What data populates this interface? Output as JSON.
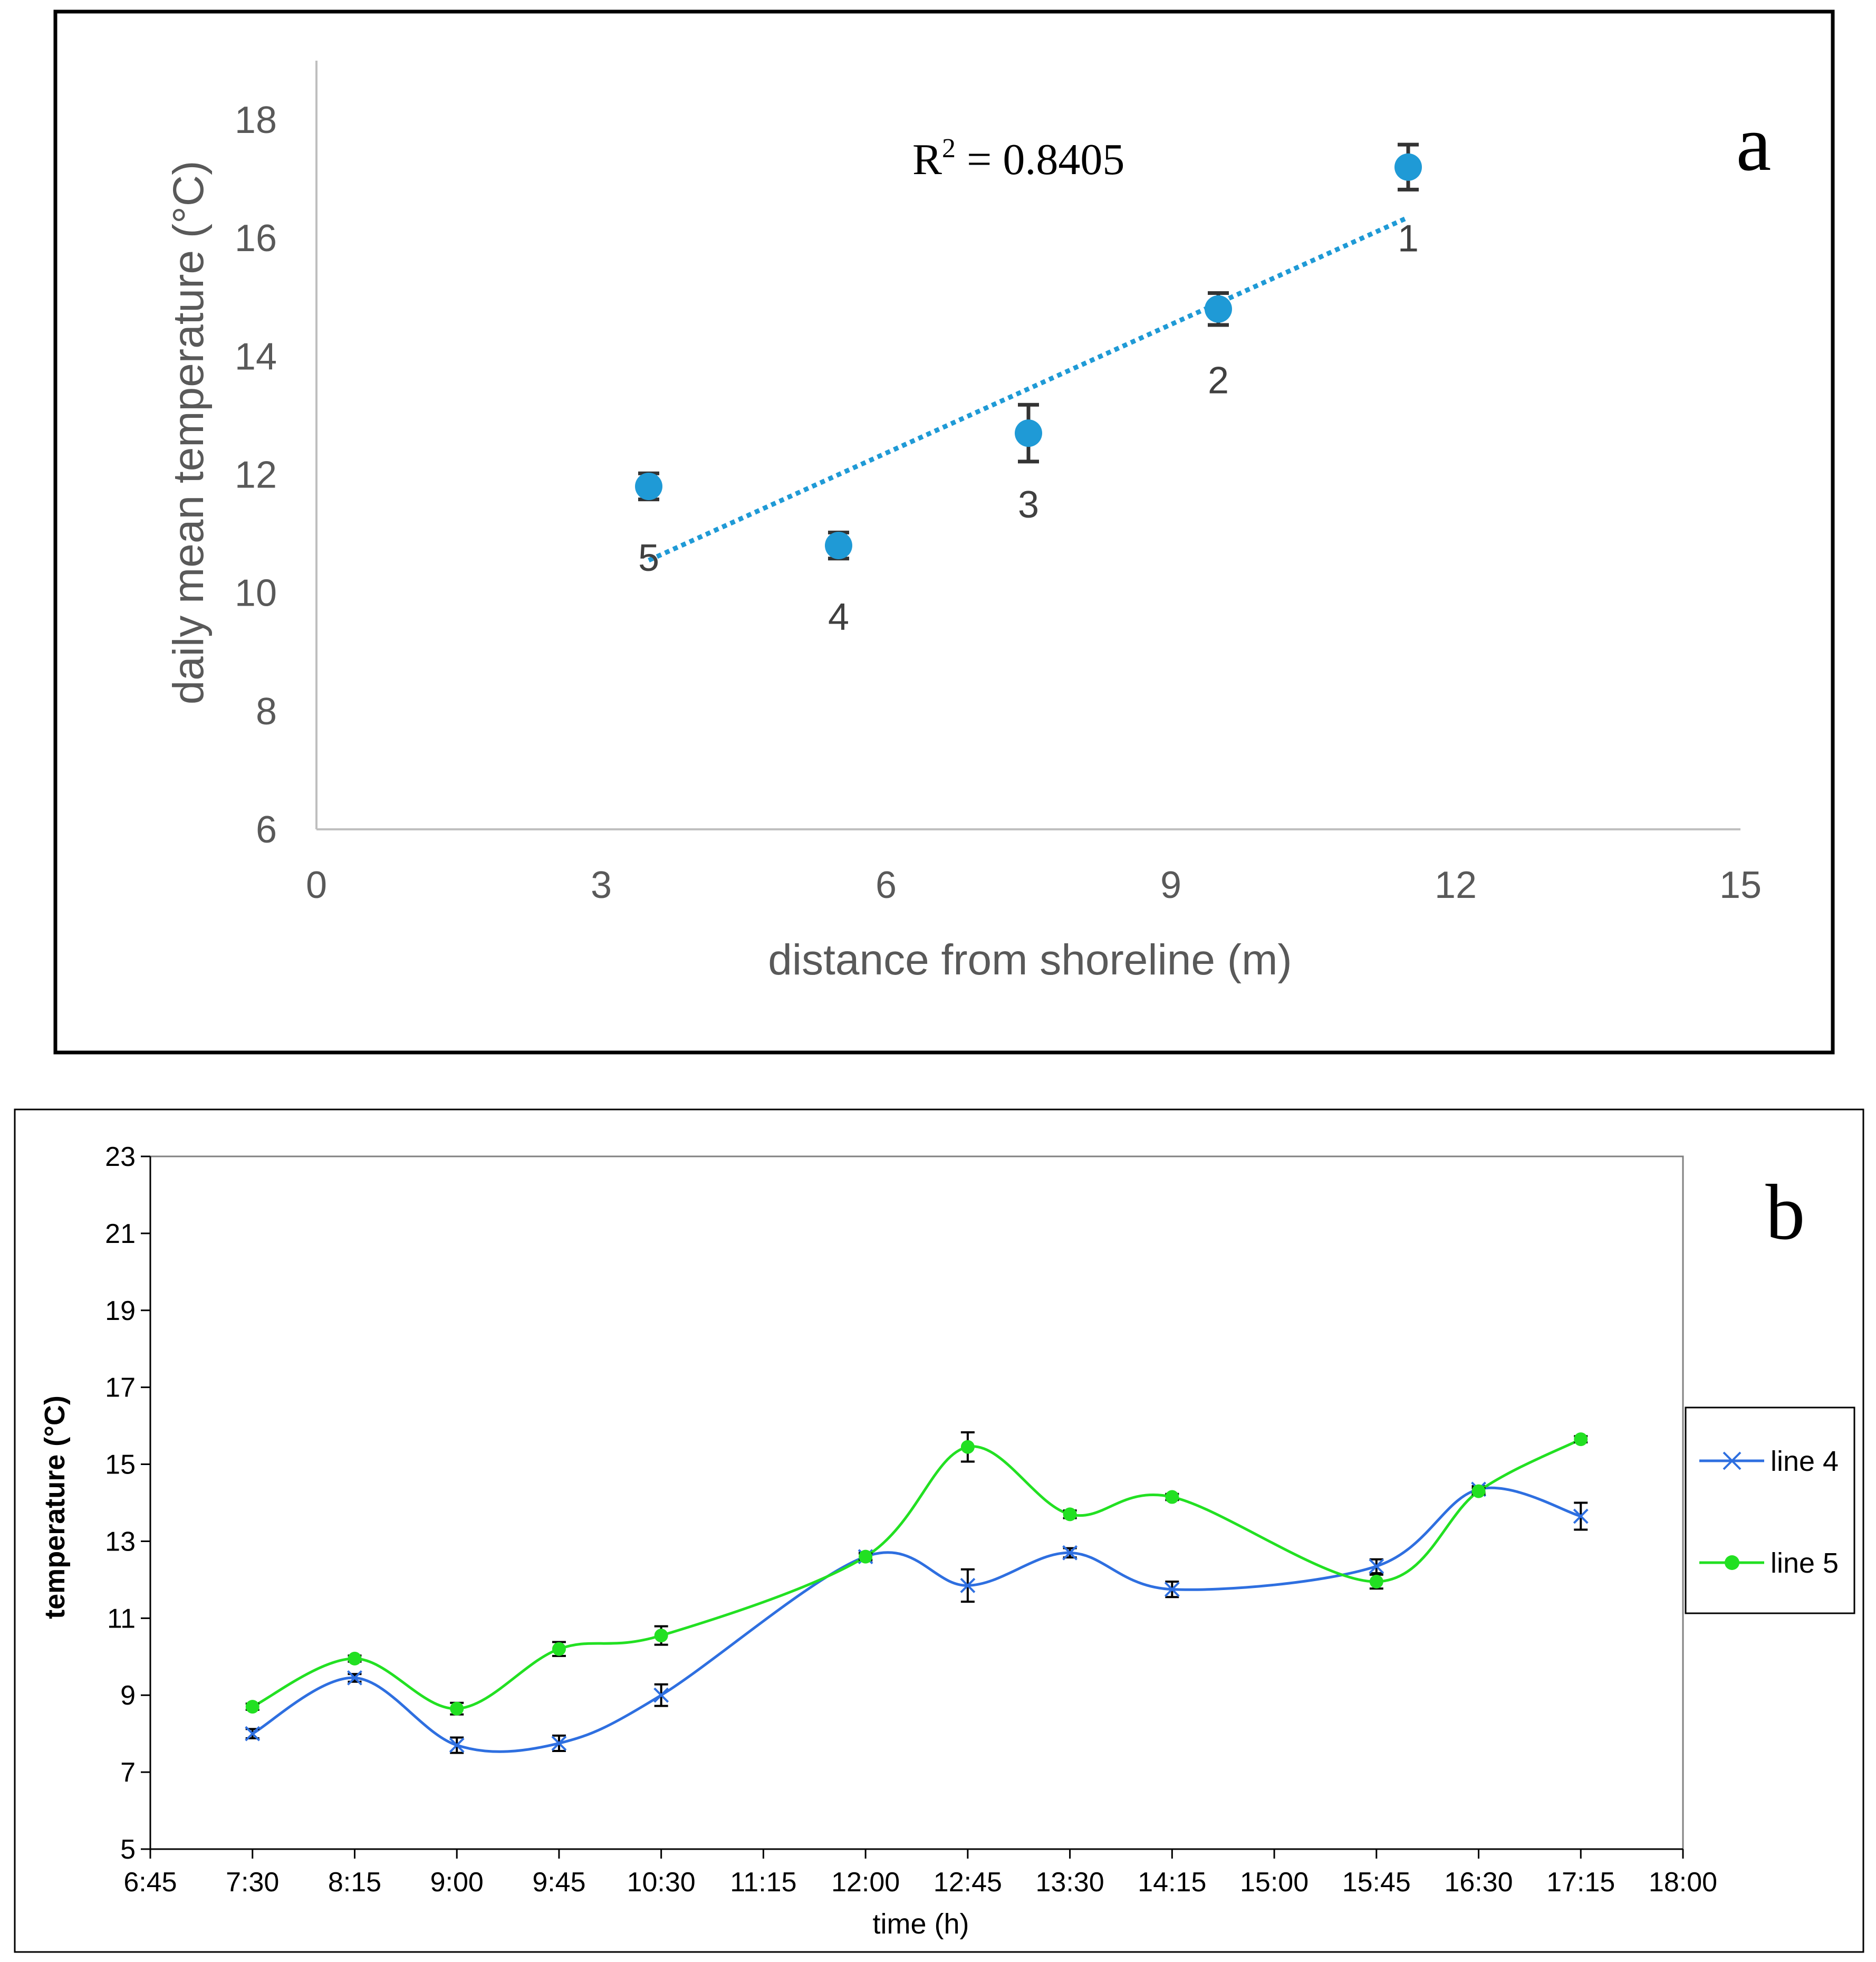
{
  "panels": {
    "a_label": "a",
    "b_label": "b"
  },
  "colors": {
    "scatter_blue": "#1f9ad6",
    "line4_blue": "#2e6fe0",
    "line5_green": "#22e022",
    "error_bar": "#333333",
    "axis_gray": "#bfbfbf",
    "tick_gray": "#595959"
  },
  "chart_data": [
    {
      "type": "scatter",
      "title": "",
      "xlabel": "distance from shoreline (m)",
      "ylabel": "daily mean temperature (°C)",
      "xlim": [
        0,
        15
      ],
      "ylim": [
        6,
        19
      ],
      "xticks": [
        0,
        3,
        6,
        9,
        12,
        15
      ],
      "yticks": [
        6,
        8,
        10,
        12,
        14,
        16,
        18
      ],
      "grid": false,
      "points": [
        {
          "label": "1",
          "x": 11.5,
          "y": 17.2,
          "err": 0.38
        },
        {
          "label": "2",
          "x": 9.5,
          "y": 14.8,
          "err": 0.27
        },
        {
          "label": "3",
          "x": 7.5,
          "y": 12.7,
          "err": 0.48
        },
        {
          "label": "4",
          "x": 5.5,
          "y": 10.8,
          "err": 0.22
        },
        {
          "label": "5",
          "x": 3.5,
          "y": 11.8,
          "err": 0.22
        }
      ],
      "trendline": {
        "x": [
          3.5,
          11.5
        ],
        "y": [
          10.55,
          16.35
        ],
        "style": "dotted"
      },
      "annotation": {
        "base": "R",
        "sup": "2",
        "rest": " = 0.8405"
      }
    },
    {
      "type": "line",
      "title": "",
      "xlabel": "time (h)",
      "ylabel": "temperature (°C)",
      "xlim": [
        "6:45",
        "18:00"
      ],
      "ylim": [
        5,
        23
      ],
      "xticks": [
        "6:45",
        "7:30",
        "8:15",
        "9:00",
        "9:45",
        "10:30",
        "11:15",
        "12:00",
        "12:45",
        "13:30",
        "14:15",
        "15:00",
        "15:45",
        "16:30",
        "17:15",
        "18:00"
      ],
      "yticks": [
        5,
        7,
        9,
        11,
        13,
        15,
        17,
        19,
        21,
        23
      ],
      "grid": false,
      "legend_position": "right",
      "x": [
        "7:30",
        "8:15",
        "9:00",
        "9:45",
        "10:30",
        "12:00",
        "12:45",
        "13:30",
        "14:15",
        "15:45",
        "16:30",
        "17:15"
      ],
      "series": [
        {
          "name": "line 4",
          "marker": "x",
          "values": [
            8.0,
            9.45,
            7.7,
            7.75,
            9.0,
            12.6,
            11.85,
            12.7,
            11.75,
            12.35,
            14.35,
            13.65
          ],
          "errors": [
            0.12,
            0.1,
            0.2,
            0.2,
            0.28,
            0.1,
            0.42,
            0.12,
            0.2,
            0.18,
            0.08,
            0.35
          ]
        },
        {
          "name": "line 5",
          "marker": "circle",
          "values": [
            8.7,
            9.95,
            8.65,
            10.2,
            10.55,
            12.6,
            15.45,
            13.7,
            14.15,
            11.95,
            14.3,
            15.65
          ],
          "errors": [
            0.08,
            0.08,
            0.15,
            0.18,
            0.24,
            0.08,
            0.38,
            0.1,
            0.08,
            0.18,
            0.08,
            0.08
          ]
        }
      ]
    }
  ]
}
